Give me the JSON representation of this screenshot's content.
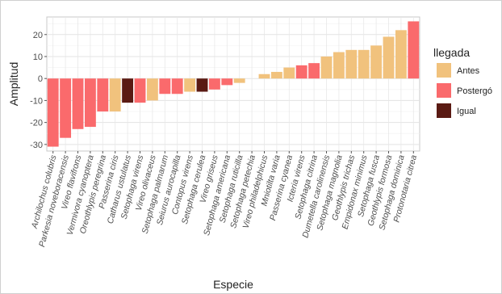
{
  "chart_data": {
    "type": "bar",
    "xlabel": "Especie",
    "ylabel": "Amplitud",
    "ylim": [
      -33,
      28
    ],
    "yticks": [
      -30,
      -20,
      -10,
      0,
      10,
      20
    ],
    "grid": true,
    "legend_position": "right",
    "legend": {
      "title": "llegada",
      "entries": [
        {
          "label": "Antes",
          "color": "#f1c27d"
        },
        {
          "label": "Postergó",
          "color": "#fa6a6c"
        },
        {
          "label": "Igual",
          "color": "#5a1a13"
        }
      ]
    },
    "categories": [
      "Archilochus colubris",
      "Parkesia noveboracensis",
      "Vireo flavifrons",
      "Vermivora cyanoptera",
      "Oreothlypis peregrina",
      "Passerina ciris",
      "Catharus ustulatus",
      "Setophaga virens",
      "Vireo olivaceus",
      "Setophaga palmarum",
      "Seiurus aurocapilla",
      "Contopus virens",
      "Setophaga cerulea",
      "Vireo griseus",
      "Setophaga americana",
      "Setophaga ruticilla",
      "Setophaga petechia",
      "Vireo philadelphicus",
      "Mniotilta varia",
      "Passerina cyanea",
      "Icteria virens",
      "Setophaga citrina",
      "Dumetella carolinensis",
      "Setophaga magnolia",
      "Geothlypis trichas",
      "Empidonax minimus",
      "Setophaga fusca",
      "Geothlypis formosa",
      "Setophaga dominica",
      "Protonotaria citrea"
    ],
    "values": [
      -31,
      -27,
      -23,
      -22,
      -15,
      -15,
      -11,
      -11,
      -10,
      -7,
      -7,
      -6,
      -6,
      -5,
      -3,
      -2,
      0,
      2,
      3,
      5,
      6,
      7,
      10,
      12,
      13,
      13,
      15,
      19,
      22,
      26
    ],
    "groups": [
      "Postergó",
      "Postergó",
      "Postergó",
      "Postergó",
      "Postergó",
      "Antes",
      "Igual",
      "Postergó",
      "Antes",
      "Postergó",
      "Postergó",
      "Antes",
      "Igual",
      "Postergó",
      "Postergó",
      "Antes",
      "Antes",
      "Antes",
      "Antes",
      "Antes",
      "Postergó",
      "Postergó",
      "Antes",
      "Antes",
      "Antes",
      "Antes",
      "Antes",
      "Antes",
      "Antes",
      "Postergó"
    ]
  }
}
